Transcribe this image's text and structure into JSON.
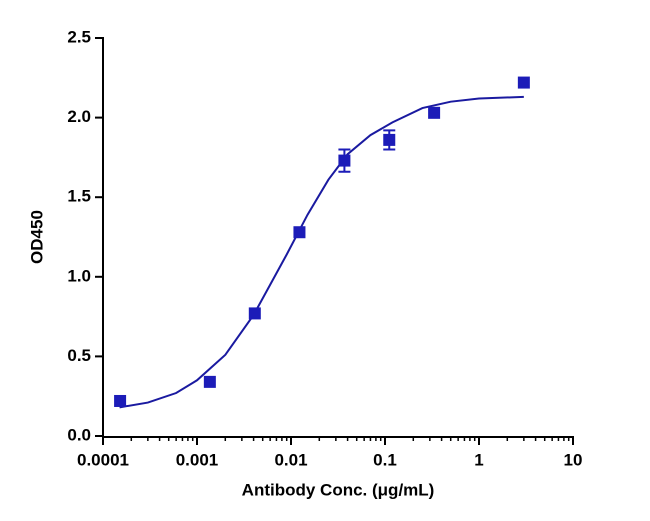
{
  "chart_data": {
    "type": "scatter",
    "x_label": "Antibody Conc. (μg/mL)",
    "y_label": "OD450",
    "xscale": "log",
    "xlim": [
      0.0001,
      10
    ],
    "xticks": [
      0.0001,
      0.001,
      0.01,
      0.1,
      1,
      10
    ],
    "ylim": [
      0,
      2.5
    ],
    "yticks": [
      {
        "value": 0,
        "label": "0.0"
      },
      {
        "value": 0.5,
        "label": "0.5"
      },
      {
        "value": 1,
        "label": "1.0"
      },
      {
        "value": 1.5,
        "label": "1.5"
      },
      {
        "value": 2,
        "label": "2.0"
      },
      {
        "value": 2.5,
        "label": "2.5"
      }
    ],
    "points": {
      "color": "#1c1cb8",
      "x": [
        0.000152,
        0.00137,
        0.00412,
        0.0123,
        0.037,
        0.111,
        0.333,
        3
      ],
      "values": [
        0.22,
        0.34,
        0.77,
        1.28,
        1.73,
        1.86,
        2.03,
        2.22
      ],
      "errors": [
        null,
        null,
        null,
        null,
        0.07,
        0.06,
        null,
        null
      ]
    },
    "fit": {
      "color": "#1a1aa0",
      "x": [
        0.00015,
        0.0003,
        0.0006,
        0.001,
        0.002,
        0.004,
        0.006,
        0.009,
        0.015,
        0.025,
        0.04,
        0.07,
        0.12,
        0.25,
        0.5,
        1,
        3
      ],
      "values": [
        0.18,
        0.21,
        0.27,
        0.35,
        0.51,
        0.76,
        0.95,
        1.14,
        1.39,
        1.61,
        1.77,
        1.89,
        1.97,
        2.06,
        2.1,
        2.12,
        2.13
      ]
    }
  }
}
